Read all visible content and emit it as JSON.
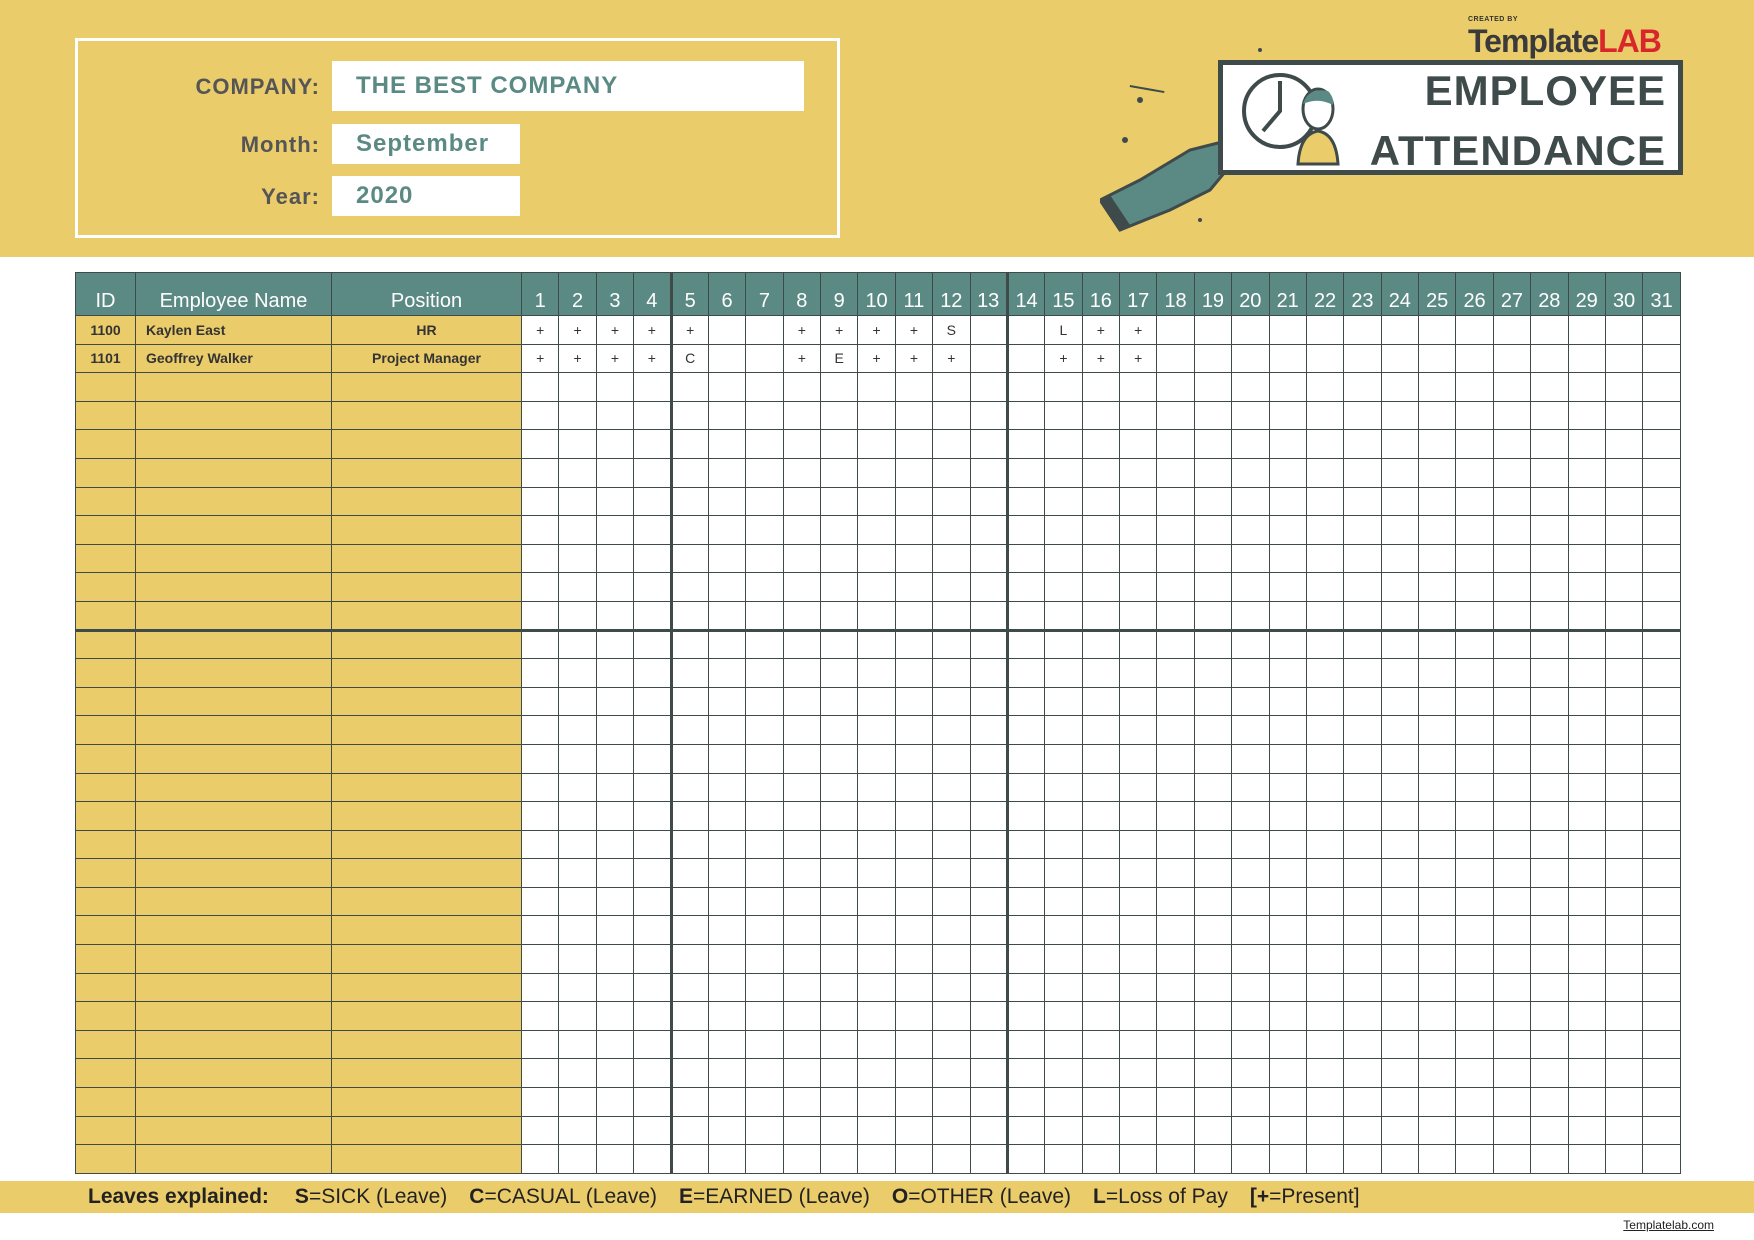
{
  "header": {
    "company_label": "COMPANY:",
    "company_value": "THE BEST COMPANY",
    "month_label": "Month:",
    "month_value": "September",
    "year_label": "Year:",
    "year_value": "2020",
    "logo_created_by": "CREATED BY",
    "logo_template": "Template",
    "logo_lab": "LAB",
    "title_line1": "EMPLOYEE",
    "title_line2": "ATTENDANCE"
  },
  "colors": {
    "yellow": "#ebcc6b",
    "teal": "#5b8a84",
    "dark": "#3f4a4a",
    "logo_red": "#d9262b"
  },
  "table": {
    "columns": [
      "ID",
      "Employee Name",
      "Position"
    ],
    "days": [
      "1",
      "2",
      "3",
      "4",
      "5",
      "6",
      "7",
      "8",
      "9",
      "10",
      "11",
      "12",
      "13",
      "14",
      "15",
      "16",
      "17",
      "18",
      "19",
      "20",
      "21",
      "22",
      "23",
      "24",
      "25",
      "26",
      "27",
      "28",
      "29",
      "30",
      "31"
    ],
    "rows": [
      {
        "id": "1100",
        "name": "Kaylen East",
        "position": "HR",
        "marks": [
          "+",
          "+",
          "+",
          "+",
          "+",
          "",
          "",
          "+",
          "+",
          "+",
          "+",
          "S",
          "",
          "",
          "L",
          "+",
          "+",
          "",
          "",
          "",
          "",
          "",
          "",
          "",
          "",
          "",
          "",
          "",
          "",
          "",
          ""
        ]
      },
      {
        "id": "1101",
        "name": "Geoffrey Walker",
        "position": "Project Manager",
        "marks": [
          "+",
          "+",
          "+",
          "+",
          "C",
          "",
          "",
          "+",
          "E",
          "+",
          "+",
          "+",
          "",
          "",
          "+",
          "+",
          "+",
          "",
          "",
          "",
          "",
          "",
          "",
          "",
          "",
          "",
          "",
          "",
          "",
          "",
          ""
        ]
      }
    ],
    "total_rows": 30
  },
  "legend": {
    "title": "Leaves explained:",
    "items": [
      {
        "key": "S",
        "text": "=SICK (Leave)"
      },
      {
        "key": "C",
        "text": "=CASUAL (Leave)"
      },
      {
        "key": "E",
        "text": "=EARNED (Leave)"
      },
      {
        "key": "O",
        "text": "=OTHER (Leave)"
      },
      {
        "key": "L",
        "text": "=Loss of Pay"
      },
      {
        "key": "[+",
        "text": "=Present]"
      }
    ]
  },
  "footer_link": "Templatelab.com"
}
